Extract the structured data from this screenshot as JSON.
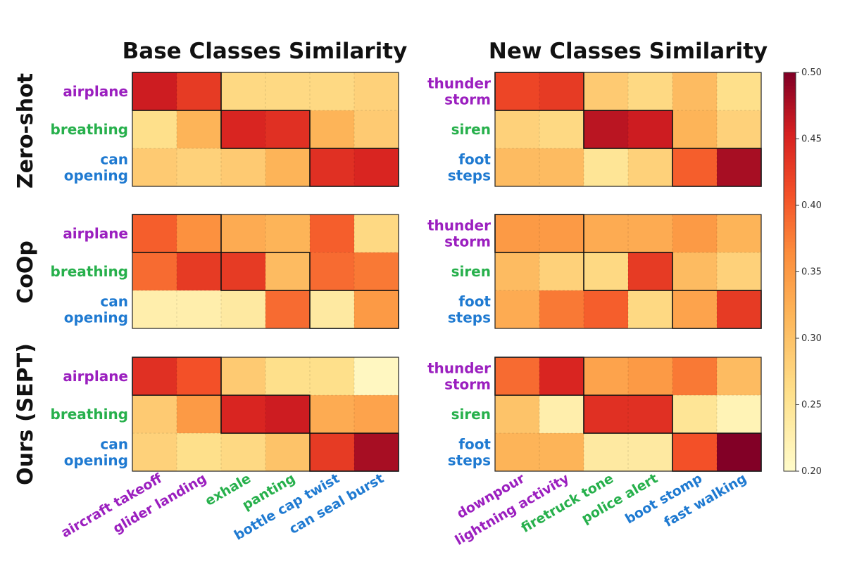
{
  "chart_data": {
    "type": "heatmap",
    "columns": [
      {
        "title": "Base Classes Similarity",
        "x_labels": [
          {
            "text": "aircraft takeoff",
            "group": 0
          },
          {
            "text": "glider landing",
            "group": 0
          },
          {
            "text": "exhale",
            "group": 1
          },
          {
            "text": "panting",
            "group": 1
          },
          {
            "text": "bottle cap twist",
            "group": 2
          },
          {
            "text": "can seal burst",
            "group": 2
          }
        ],
        "y_labels": [
          {
            "lines": [
              "airplane"
            ],
            "group": 0
          },
          {
            "lines": [
              "breathing"
            ],
            "group": 1
          },
          {
            "lines": [
              "can",
              "opening"
            ],
            "group": 2
          }
        ]
      },
      {
        "title": "New Classes Similarity",
        "x_labels": [
          {
            "text": "downpour",
            "group": 0
          },
          {
            "text": "lightning activity",
            "group": 0
          },
          {
            "text": "firetruck tone",
            "group": 1
          },
          {
            "text": "police alert",
            "group": 1
          },
          {
            "text": "boot stomp",
            "group": 2
          },
          {
            "text": "fast walking",
            "group": 2
          }
        ],
        "y_labels": [
          {
            "lines": [
              "thunder",
              "storm"
            ],
            "group": 0
          },
          {
            "lines": [
              "siren"
            ],
            "group": 1
          },
          {
            "lines": [
              "foot",
              "steps"
            ],
            "group": 2
          }
        ]
      }
    ],
    "rows": [
      {
        "title": "Zero-shot",
        "base": [
          [
            0.46,
            0.43,
            0.27,
            0.27,
            0.27,
            0.28
          ],
          [
            0.26,
            0.32,
            0.45,
            0.44,
            0.32,
            0.29
          ],
          [
            0.29,
            0.28,
            0.29,
            0.32,
            0.44,
            0.45
          ]
        ],
        "new": [
          [
            0.42,
            0.43,
            0.29,
            0.27,
            0.31,
            0.26
          ],
          [
            0.28,
            0.27,
            0.47,
            0.46,
            0.32,
            0.28
          ],
          [
            0.31,
            0.31,
            0.25,
            0.28,
            0.4,
            0.48
          ]
        ]
      },
      {
        "title": "CoOp",
        "base": [
          [
            0.4,
            0.36,
            0.33,
            0.32,
            0.4,
            0.27
          ],
          [
            0.39,
            0.43,
            0.43,
            0.31,
            0.39,
            0.38
          ],
          [
            0.23,
            0.23,
            0.24,
            0.39,
            0.24,
            0.35
          ]
        ],
        "new": [
          [
            0.35,
            0.35,
            0.33,
            0.33,
            0.35,
            0.32
          ],
          [
            0.31,
            0.28,
            0.27,
            0.43,
            0.31,
            0.28
          ],
          [
            0.33,
            0.38,
            0.4,
            0.27,
            0.34,
            0.43
          ]
        ]
      },
      {
        "title": "Ours (SEPT)",
        "base": [
          [
            0.44,
            0.41,
            0.29,
            0.26,
            0.26,
            0.21
          ],
          [
            0.29,
            0.35,
            0.45,
            0.46,
            0.33,
            0.34
          ],
          [
            0.28,
            0.26,
            0.27,
            0.3,
            0.43,
            0.48
          ]
        ],
        "new": [
          [
            0.39,
            0.45,
            0.34,
            0.35,
            0.38,
            0.31
          ],
          [
            0.3,
            0.23,
            0.44,
            0.44,
            0.25,
            0.22
          ],
          [
            0.32,
            0.32,
            0.24,
            0.24,
            0.41,
            0.5
          ]
        ]
      }
    ],
    "colorbar": {
      "min": 0.2,
      "max": 0.5,
      "ticks": [
        "0.20",
        "0.25",
        "0.30",
        "0.35",
        "0.40",
        "0.45",
        "0.50"
      ],
      "colormap": "YlOrRd"
    },
    "group_colors": [
      "#9b1fbf",
      "#27b04c",
      "#1f7ad1"
    ]
  }
}
